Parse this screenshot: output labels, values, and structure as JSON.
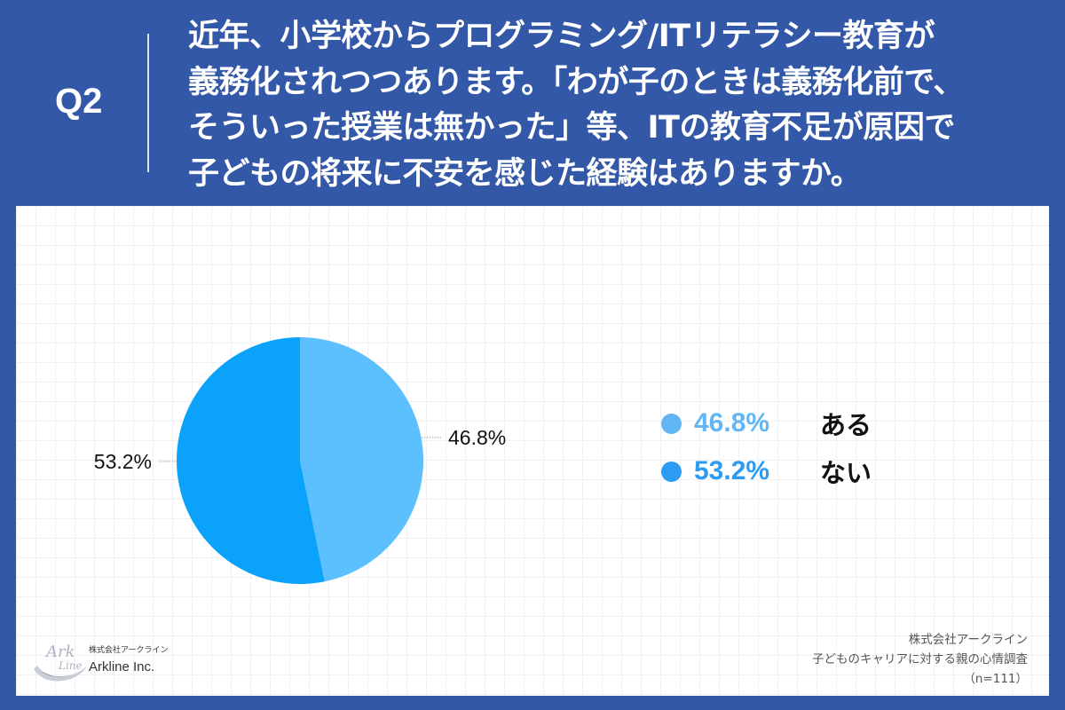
{
  "header": {
    "question_number": "Q2",
    "question_lines": [
      "近年、小学校からプログラミング/ITリテラシー教育が",
      "義務化されつつあります。「わが子のときは義務化前で、",
      "そういった授業は無かった」等、ITの教育不足が原因で",
      "子どもの将来に不安を感じた経験はありますか。"
    ]
  },
  "chart_data": {
    "type": "pie",
    "categories": [
      "ある",
      "ない"
    ],
    "values": [
      46.8,
      53.2
    ],
    "data_labels": [
      "46.8%",
      "53.2%"
    ],
    "colors": [
      "#5bc0fd",
      "#0aa2fb"
    ],
    "legend_colors": [
      "#62b6f6",
      "#2b9bf3"
    ],
    "legend_placement": "right",
    "grid": false
  },
  "legend": {
    "items": [
      {
        "percent": "46.8%",
        "label": "ある"
      },
      {
        "percent": "53.2%",
        "label": "ない"
      }
    ]
  },
  "logo": {
    "mark_text": "ArkLine",
    "company_jp": "株式会社アークライン",
    "company_en": "Arkline Inc."
  },
  "source": {
    "company": "株式会社アークライン",
    "survey": "子どものキャリアに対する親の心情調査",
    "sample": "（n=111）"
  }
}
